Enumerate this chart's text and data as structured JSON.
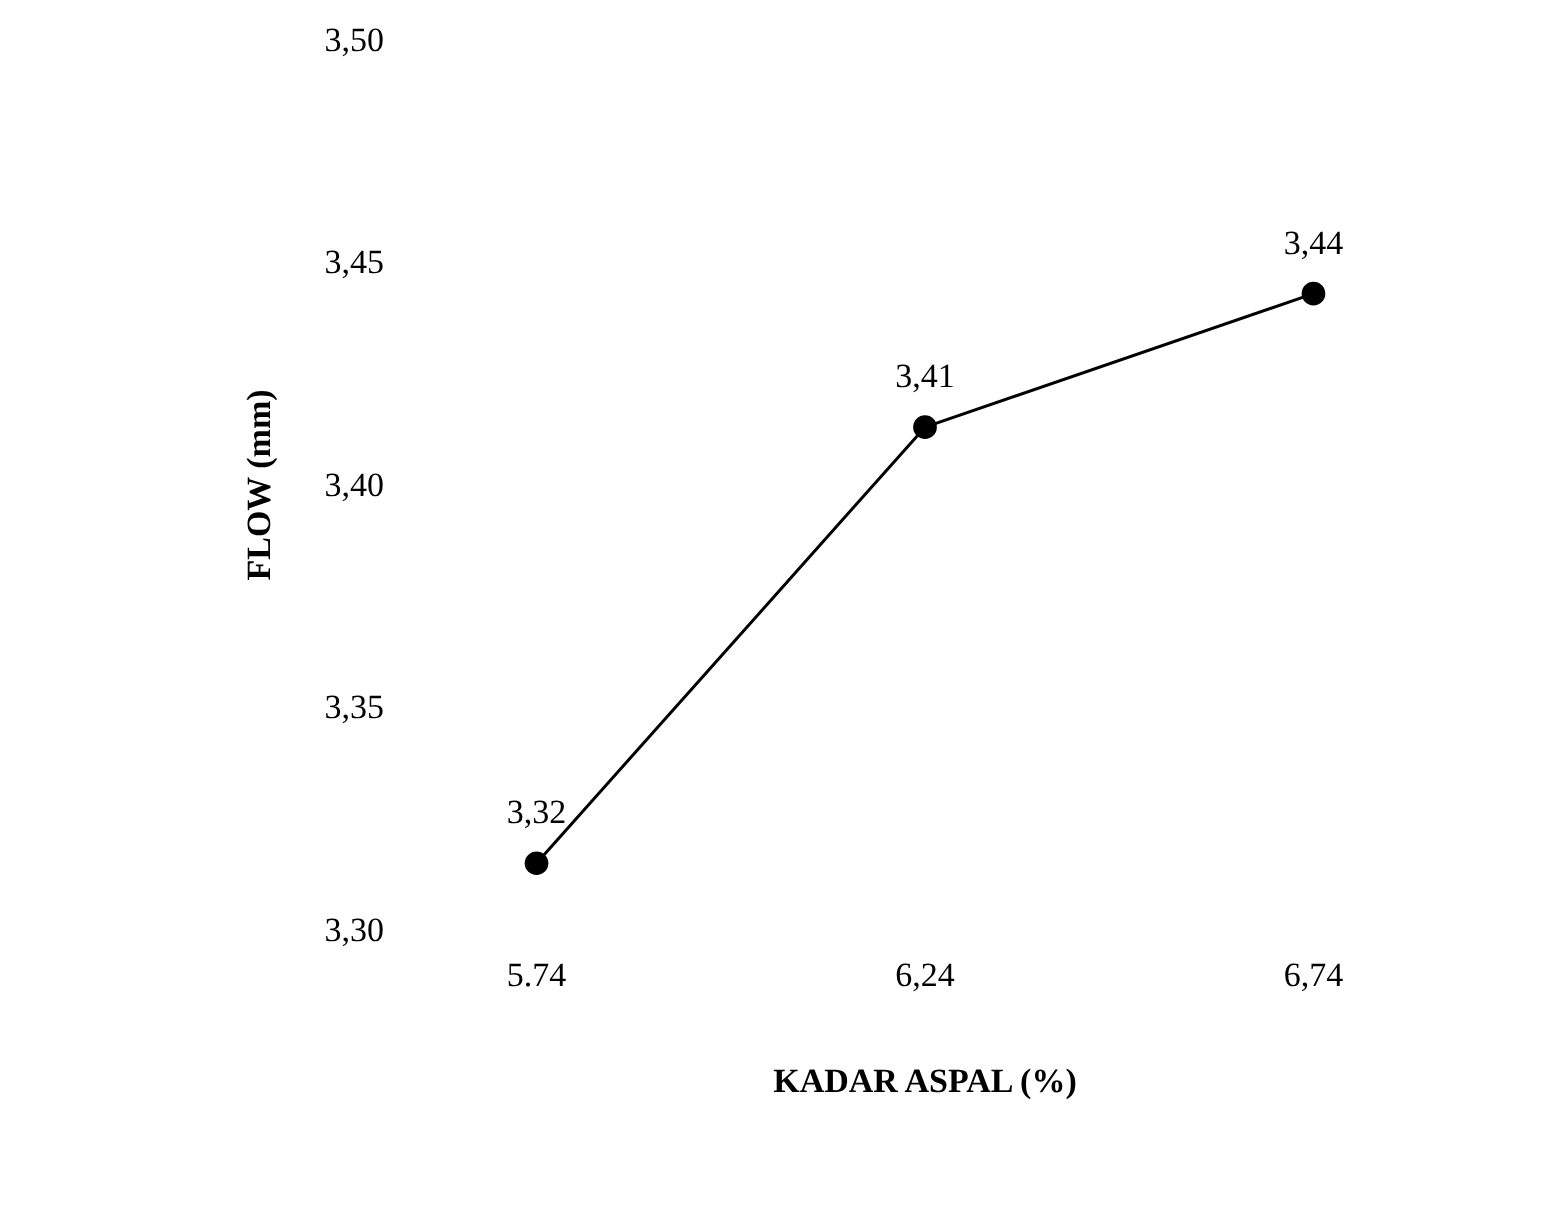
{
  "chart_data": {
    "type": "line",
    "xlabel": "KADAR ASPAL (%)",
    "ylabel": "FLOW (mm)",
    "categories": [
      "5.74",
      "6,24",
      "6,74"
    ],
    "series": [
      {
        "color": "#000000",
        "values": [
          3.315,
          3.413,
          3.443
        ],
        "value_labels": [
          "3,32",
          "3,41",
          "3,44"
        ]
      }
    ],
    "ylim": [
      3.3,
      3.5
    ],
    "yticks": [
      {
        "value": 3.3,
        "label": "3,30"
      },
      {
        "value": 3.35,
        "label": "3,35"
      },
      {
        "value": 3.4,
        "label": "3,40"
      },
      {
        "value": 3.45,
        "label": "3,45"
      },
      {
        "value": 3.5,
        "label": "3,50"
      }
    ],
    "marker": "circle",
    "line_style": "solid"
  }
}
